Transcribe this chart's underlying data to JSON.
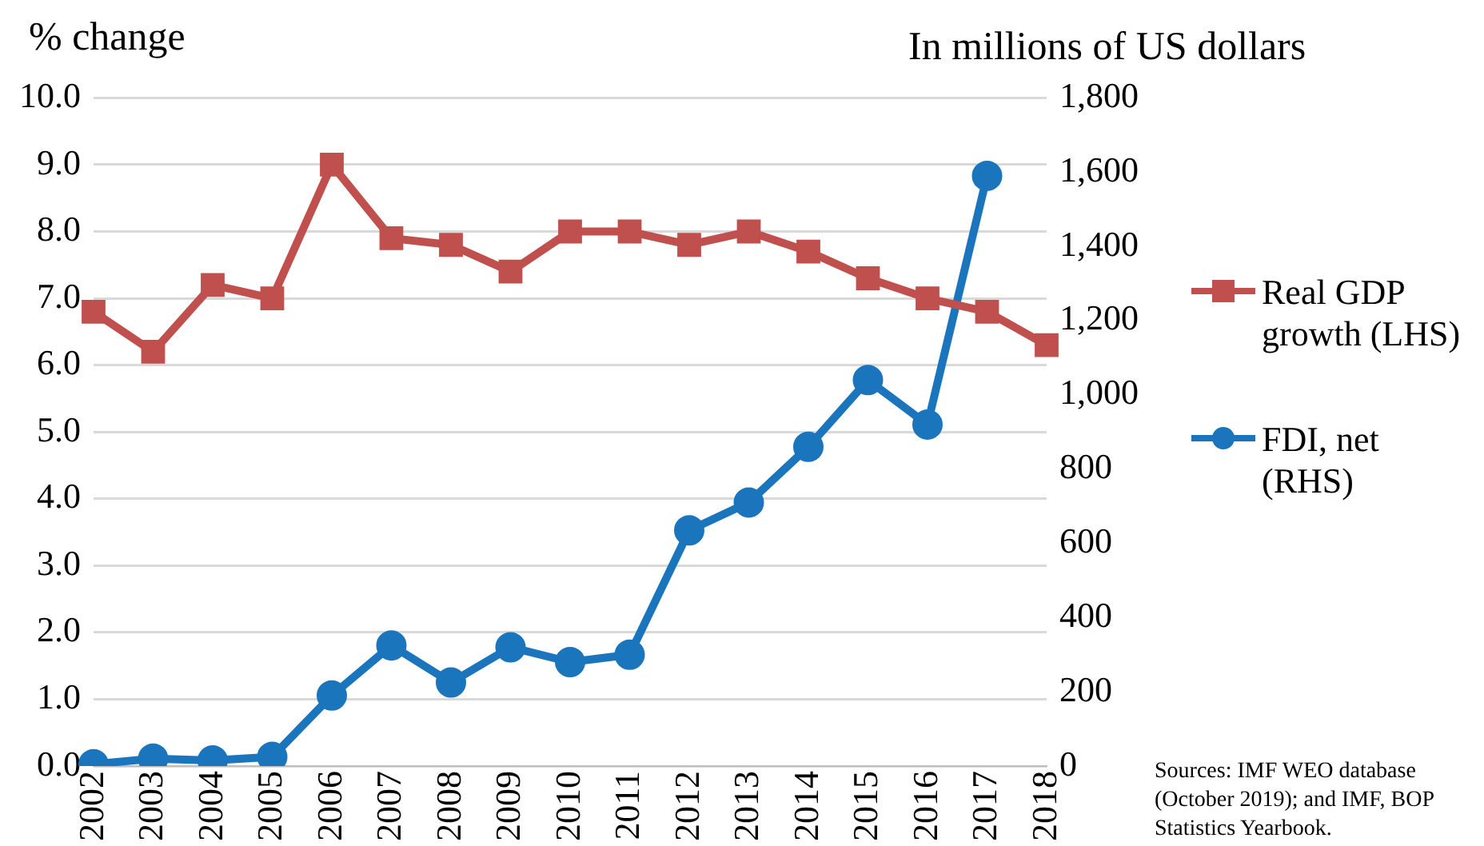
{
  "chart_data": {
    "type": "line",
    "ylabel": "% change",
    "y2label": "In millions of US dollars",
    "categories": [
      "2002",
      "2003",
      "2004",
      "2005",
      "2006",
      "2007",
      "2008",
      "2009",
      "2010",
      "2011",
      "2012",
      "2013",
      "2014",
      "2015",
      "2016",
      "2017",
      "2018"
    ],
    "series": [
      {
        "name": "Real GDP growth (LHS)",
        "color": "#c0504d",
        "marker": "square",
        "values": [
          6.8,
          6.2,
          7.2,
          7.0,
          9.0,
          7.9,
          7.8,
          7.4,
          8.0,
          8.0,
          7.8,
          8.0,
          7.7,
          7.3,
          7.0,
          6.8,
          6.3
        ]
      },
      {
        "name": "FDI, net (RHS)",
        "color": "#1b75bc",
        "marker": "circle",
        "axis": "y2",
        "values": [
          5,
          20,
          15,
          25,
          190,
          325,
          225,
          320,
          280,
          300,
          635,
          710,
          860,
          1040,
          920,
          1590,
          null
        ]
      }
    ],
    "ylim": [
      0,
      10
    ],
    "yticks": [
      {
        "value": 0,
        "label": "0.0"
      },
      {
        "value": 1,
        "label": "1.0"
      },
      {
        "value": 2,
        "label": "2.0"
      },
      {
        "value": 3,
        "label": "3.0"
      },
      {
        "value": 4,
        "label": "4.0"
      },
      {
        "value": 5,
        "label": "5.0"
      },
      {
        "value": 6,
        "label": "6.0"
      },
      {
        "value": 7,
        "label": "7.0"
      },
      {
        "value": 8,
        "label": "8.0"
      },
      {
        "value": 9,
        "label": "9.0"
      },
      {
        "value": 10,
        "label": "10.0"
      }
    ],
    "y2lim": [
      0,
      1800
    ],
    "y2ticks": [
      0,
      200,
      400,
      600,
      800,
      {
        "value": 1000,
        "label": "1,000"
      },
      {
        "value": 1200,
        "label": "1,200"
      },
      {
        "value": 1400,
        "label": "1,400"
      },
      {
        "value": 1600,
        "label": "1,600"
      },
      {
        "value": 1800,
        "label": "1,800"
      }
    ],
    "grid": "y",
    "legend": "right",
    "line_style": "solid",
    "annotations": [
      "Sources: IMF WEO database (October 2019); and IMF, BOP Statistics Yearbook."
    ]
  }
}
